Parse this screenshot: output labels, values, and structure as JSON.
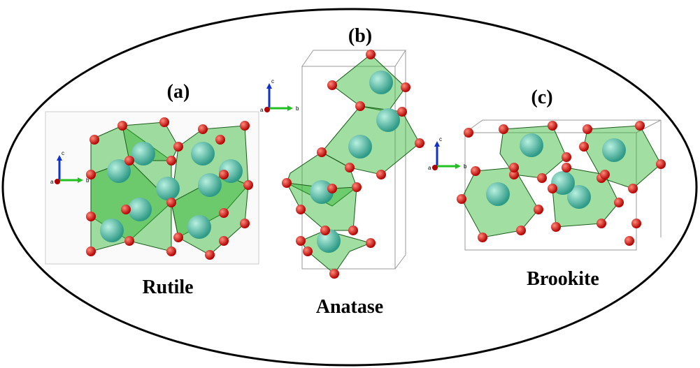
{
  "panels": [
    {
      "label": "(a)",
      "name": "Rutile",
      "axes": [
        "c",
        "a",
        "b"
      ]
    },
    {
      "label": "(b)",
      "name": "Anatase",
      "axes": [
        "c",
        "a",
        "b"
      ]
    },
    {
      "label": "(c)",
      "name": "Brookite",
      "axes": [
        "c",
        "a",
        "b"
      ]
    }
  ]
}
